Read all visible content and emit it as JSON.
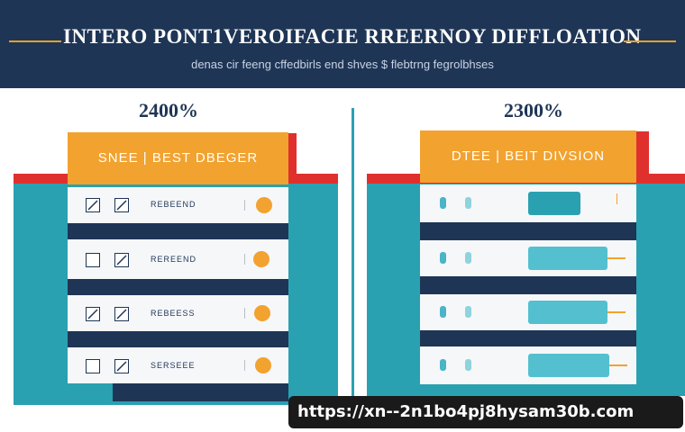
{
  "header": {
    "title": "INTERO PONT1VEROIFACIE RREERNOY DIFFLOATION",
    "subtitle": "denas cir feeng cffedbirls end shves $ flebtrng fegrolbhses",
    "accent_line_color": "#f0a020"
  },
  "left_panel": {
    "percent": "2400%",
    "header_label": "SNEE | BEST DBEGER",
    "rows": [
      {
        "label": "REBEEND",
        "check_left": "checked",
        "check_right": "checked"
      },
      {
        "label": "REREEND",
        "check_left": "empty",
        "check_right": "checked"
      },
      {
        "label": "REBEESS",
        "check_left": "checked",
        "check_right": "checked"
      },
      {
        "label": "SERSEEE",
        "check_left": "empty",
        "check_right": "checked"
      }
    ]
  },
  "right_panel": {
    "percent": "2300%",
    "header_label": "DTEE | BEIT DIVSION",
    "rows": [
      {
        "bar_level": 0.4
      },
      {
        "bar_level": 0.6
      },
      {
        "bar_level": 0.7
      },
      {
        "bar_level": 0.75
      }
    ]
  },
  "watermark": {
    "url": "https://xn--2n1bo4pj8hysam30b.com"
  },
  "colors": {
    "navy": "#1e3556",
    "teal": "#2aa1b1",
    "orange": "#f2a22f",
    "red": "#e0302e"
  }
}
